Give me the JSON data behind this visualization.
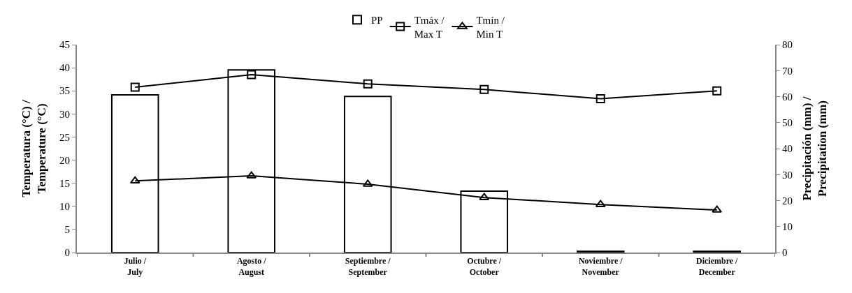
{
  "chart_data": {
    "type": "bar",
    "ylabel": "Temperatura (°C) /\nTemperature (°C)",
    "y2label": "Precipitación (mm) /\nPrecipitation (mm)",
    "categories": [
      "Julio /\nJuly",
      "Agosto /\nAugust",
      "Septiembre /\nSeptember",
      "Octubre /\nOctober",
      "Noviembre /\nNovember",
      "Diciembre /\nDecember"
    ],
    "series": [
      {
        "name": "PP",
        "axis": "y2",
        "color": "#ffffff",
        "values": [
          60.7,
          70.3,
          60.1,
          23.6,
          0.5,
          0.5
        ]
      },
      {
        "name": "Tmáx /\nMax T",
        "type": "line",
        "color": "#000000",
        "marker": "square",
        "values": [
          35.8,
          38.5,
          36.5,
          35.3,
          33.3,
          35.0
        ]
      },
      {
        "name": "Tmín /\nMin T",
        "type": "line",
        "color": "#000000",
        "marker": "triangle",
        "values": [
          15.5,
          16.6,
          14.8,
          11.9,
          10.4,
          9.2
        ]
      }
    ],
    "ylim": [
      0,
      45
    ],
    "yticks": [
      0,
      5,
      10,
      15,
      20,
      25,
      30,
      35,
      40,
      45
    ],
    "y2lim": [
      0,
      80
    ],
    "y2ticks": [
      0,
      10,
      20,
      30,
      40,
      50,
      60,
      70,
      80
    ],
    "legend": "top"
  }
}
